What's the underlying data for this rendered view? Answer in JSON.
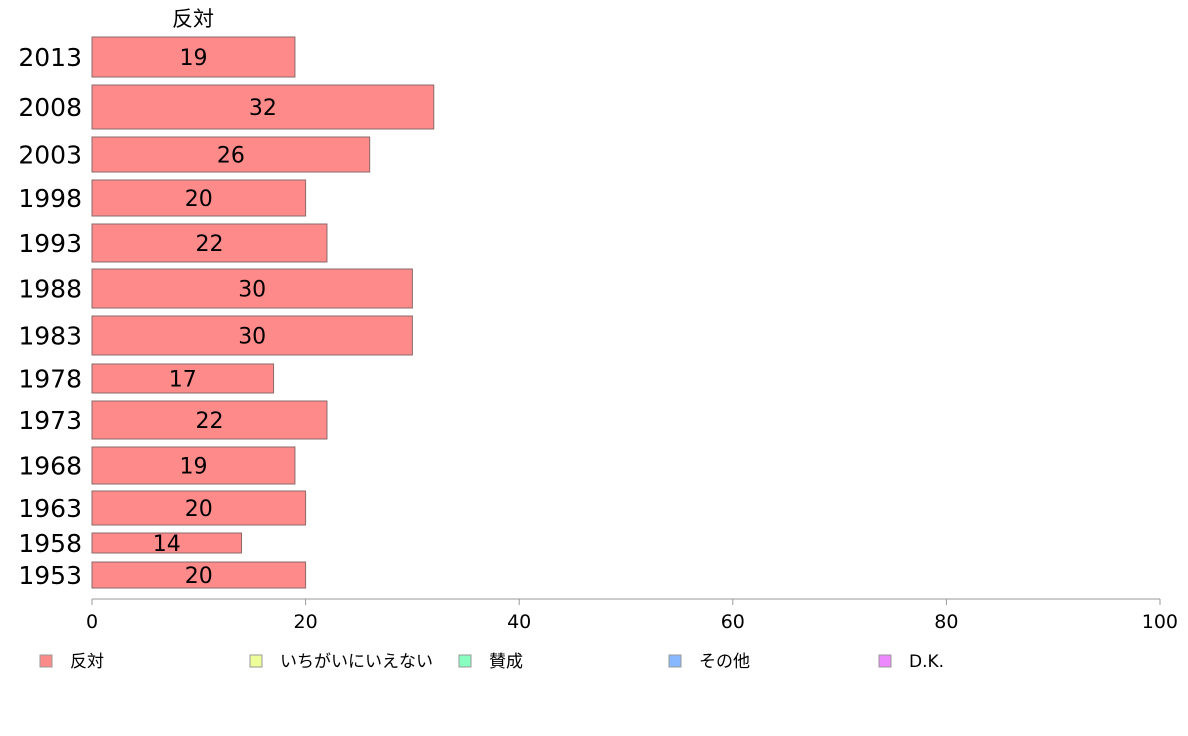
{
  "chart_data": {
    "type": "bar",
    "orientation": "horizontal",
    "title": "反対",
    "categories": [
      "2013",
      "2008",
      "2003",
      "1998",
      "1993",
      "1988",
      "1983",
      "1978",
      "1973",
      "1968",
      "1963",
      "1958",
      "1953"
    ],
    "series": [
      {
        "name": "反対",
        "color": "#ff8a8a",
        "values": [
          19,
          32,
          26,
          20,
          22,
          30,
          30,
          17,
          22,
          19,
          20,
          14,
          20
        ]
      }
    ],
    "xlim": [
      0,
      100
    ],
    "xticks": [
      0,
      20,
      40,
      60,
      80,
      100
    ],
    "grid": false,
    "legend_position": "bottom",
    "legend": [
      {
        "label": "反対",
        "color": "#ff8a8a"
      },
      {
        "label": "いちがいにいえない",
        "color": "#eeff99"
      },
      {
        "label": "賛成",
        "color": "#88ffc0"
      },
      {
        "label": "その他",
        "color": "#88b8ff"
      },
      {
        "label": "D.K.",
        "color": "#ee88ff"
      }
    ]
  }
}
